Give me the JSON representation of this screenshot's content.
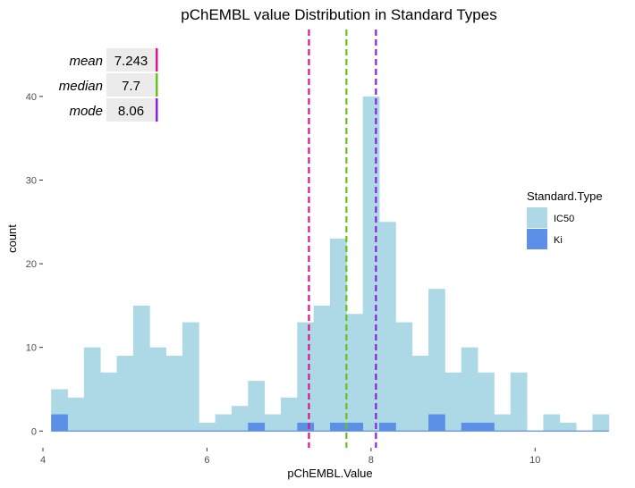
{
  "chart_data": {
    "type": "bar",
    "title": "pChEMBL value Distribution in Standard Types",
    "xlabel": "pChEMBL.Value",
    "ylabel": "count",
    "xlim": [
      4.0,
      11.0
    ],
    "ylim": [
      -2,
      48
    ],
    "xticks": [
      4,
      6,
      8,
      10
    ],
    "yticks": [
      0,
      10,
      20,
      30,
      40
    ],
    "bin_width": 0.2,
    "bin_start": 4.1,
    "grid": false,
    "legend": {
      "title": "Standard.Type",
      "position": "right",
      "entries": [
        {
          "name": "IC50",
          "color": "#add8e6"
        },
        {
          "name": "Ki",
          "color": "#5b8fe8"
        }
      ]
    },
    "series": [
      {
        "name": "IC50",
        "color": "#add8e6",
        "values": [
          5,
          4,
          10,
          7,
          9,
          15,
          10,
          9,
          13,
          1,
          2,
          3,
          6,
          2,
          4,
          13,
          15,
          23,
          14,
          40,
          25,
          13,
          9,
          17,
          7,
          10,
          7,
          2,
          7,
          0,
          2,
          1,
          0,
          2
        ]
      },
      {
        "name": "Ki",
        "color": "#5b8fe8",
        "values": [
          2,
          0,
          0,
          0,
          0,
          0,
          0,
          0,
          0,
          0,
          0,
          0,
          1,
          0,
          0,
          1,
          0,
          1,
          1,
          0,
          1,
          0,
          0,
          2,
          0,
          1,
          1,
          0,
          0,
          0,
          0,
          0,
          0,
          0
        ]
      }
    ],
    "reference_lines": [
      {
        "name": "mean",
        "value": 7.243,
        "label": "7.243",
        "color": "#e0118a",
        "style": "dashed"
      },
      {
        "name": "median",
        "value": 7.7,
        "label": "7.7",
        "color": "#66c21a",
        "style": "dashed"
      },
      {
        "name": "mode",
        "value": 8.06,
        "label": "8.06",
        "color": "#8b1fe0",
        "style": "dashed"
      }
    ]
  }
}
